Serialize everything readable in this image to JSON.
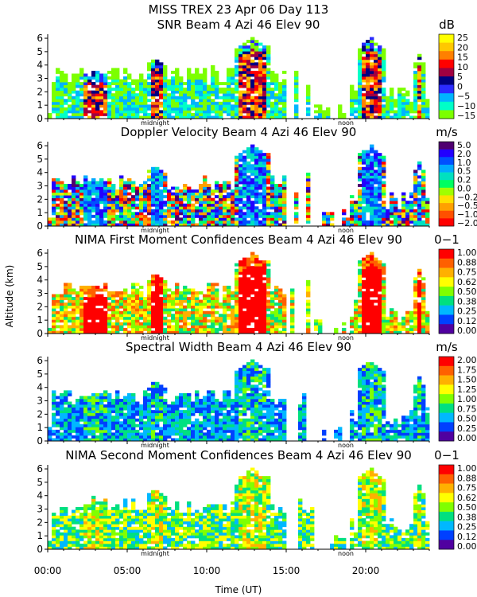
{
  "header": {
    "title": "MISS TREX   23 Apr 06 Day 113"
  },
  "yaxis_label": "Altitude (km)",
  "xaxis": {
    "label": "Time (UT)",
    "ticks": [
      "00:00",
      "05:00",
      "10:00",
      "15:00",
      "20:00"
    ],
    "tick_values": [
      0,
      5,
      10,
      15,
      20
    ],
    "range": [
      0,
      24
    ],
    "midnight_label": "midnight",
    "noon_label": "noon",
    "midnight_hour": 6.75,
    "noon_hour": 18.75
  },
  "chart_data": [
    {
      "type": "heatmap",
      "title": "SNR Beam 4 Azi  46 Elev 90",
      "unit": "dB",
      "ylabel": "Altitude (km)",
      "ylim": [
        0,
        6.3
      ],
      "yticks": [
        "0",
        "1",
        "2",
        "3",
        "4",
        "5",
        "6"
      ],
      "colorbar": [
        "25",
        "20",
        "15",
        "10",
        "5",
        "0",
        "−5",
        "−10",
        "−15"
      ],
      "colors": [
        "#ffff00",
        "#ffc800",
        "#ff8000",
        "#ff0000",
        "#a00040",
        "#000080",
        "#2b2bff",
        "#00b4ff",
        "#00ffc8",
        "#7cff00"
      ]
    },
    {
      "type": "heatmap",
      "title": "Doppler Velocity Beam 4 Azi  46 Elev 90",
      "unit": "m/s",
      "ylabel": "Altitude (km)",
      "ylim": [
        0,
        6.3
      ],
      "yticks": [
        "0",
        "1",
        "2",
        "3",
        "4",
        "5",
        "6"
      ],
      "colorbar": [
        "5.0",
        "2.0",
        "1.0",
        "0.5",
        "0.2",
        "0.0",
        "−0.2",
        "−0.5",
        "−1.0",
        "−2.0"
      ],
      "colors": [
        "#500070",
        "#2200ff",
        "#0050ff",
        "#00aaff",
        "#00e0c0",
        "#00ff60",
        "#a0ff00",
        "#ffe000",
        "#ffa000",
        "#ff5000",
        "#ff0000"
      ]
    },
    {
      "type": "heatmap",
      "title": "NIMA First Moment Confidences Beam 4 Azi  46 Elev 90",
      "unit": "0−1",
      "ylabel": "Altitude (km)",
      "ylim": [
        0,
        6.3
      ],
      "yticks": [
        "0",
        "1",
        "2",
        "3",
        "4",
        "5",
        "6"
      ],
      "colorbar": [
        "1.00",
        "0.88",
        "0.75",
        "0.62",
        "0.50",
        "0.38",
        "0.25",
        "0.12",
        "0.00"
      ],
      "colors": [
        "#ff0000",
        "#ff6000",
        "#ffb000",
        "#ffff00",
        "#80ff00",
        "#00e080",
        "#00b8ff",
        "#0040ff",
        "#5000a0"
      ]
    },
    {
      "type": "heatmap",
      "title": "Spectral Width Beam 4 Azi  46 Elev 90",
      "unit": "m/s",
      "ylabel": "Altitude (km)",
      "ylim": [
        0,
        6.3
      ],
      "yticks": [
        "0",
        "1",
        "2",
        "3",
        "4",
        "5",
        "6"
      ],
      "colorbar": [
        "2.00",
        "1.75",
        "1.50",
        "1.25",
        "1.00",
        "0.75",
        "0.50",
        "0.25",
        "0.00"
      ],
      "colors": [
        "#ff0000",
        "#ff6000",
        "#ffb000",
        "#ffff00",
        "#80ff00",
        "#00e080",
        "#00b8ff",
        "#0040ff",
        "#5000a0"
      ]
    },
    {
      "type": "heatmap",
      "title": "NIMA Second Moment Confidences Beam 4 Azi  46 Elev 90",
      "unit": "0−1",
      "ylabel": "Altitude (km)",
      "ylim": [
        0,
        6.3
      ],
      "yticks": [
        "0",
        "1",
        "2",
        "3",
        "4",
        "5",
        "6"
      ],
      "colorbar": [
        "1.00",
        "0.88",
        "0.75",
        "0.62",
        "0.50",
        "0.38",
        "0.25",
        "0.12",
        "0.00"
      ],
      "colors": [
        "#ff0000",
        "#ff6000",
        "#ffb000",
        "#ffff00",
        "#80ff00",
        "#00e080",
        "#00b8ff",
        "#0040ff",
        "#5000a0"
      ]
    }
  ]
}
